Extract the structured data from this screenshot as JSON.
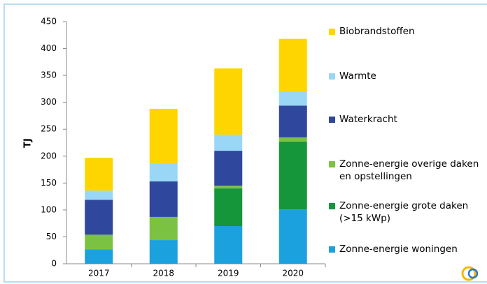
{
  "chart_data": {
    "type": "stacked_bar",
    "y_label": "TJ",
    "categories": [
      "2017",
      "2018",
      "2019",
      "2020"
    ],
    "series": [
      {
        "name": "Zonne-energie woningen",
        "color": "#1ba1dd",
        "values": [
          27,
          44,
          70,
          101
        ]
      },
      {
        "name": "Zonne-energie grote daken (>15 kWp)",
        "color": "#16963a",
        "values": [
          0,
          0,
          70,
          126
        ]
      },
      {
        "name": "Zonne-energie overige daken en opstellingen",
        "color": "#7cc242",
        "values": [
          27,
          43,
          5,
          8
        ]
      },
      {
        "name": "Waterkracht",
        "color": "#2f479c",
        "values": [
          65,
          66,
          65,
          59
        ]
      },
      {
        "name": "Warmte",
        "color": "#9ad7f7",
        "values": [
          17,
          34,
          30,
          25
        ]
      },
      {
        "name": "Biobrandstoffen",
        "color": "#ffd500",
        "values": [
          61,
          101,
          123,
          99
        ]
      }
    ],
    "ylim": [
      0,
      450
    ],
    "yticks": [
      0,
      50,
      100,
      150,
      200,
      250,
      300,
      350,
      400,
      450
    ]
  }
}
